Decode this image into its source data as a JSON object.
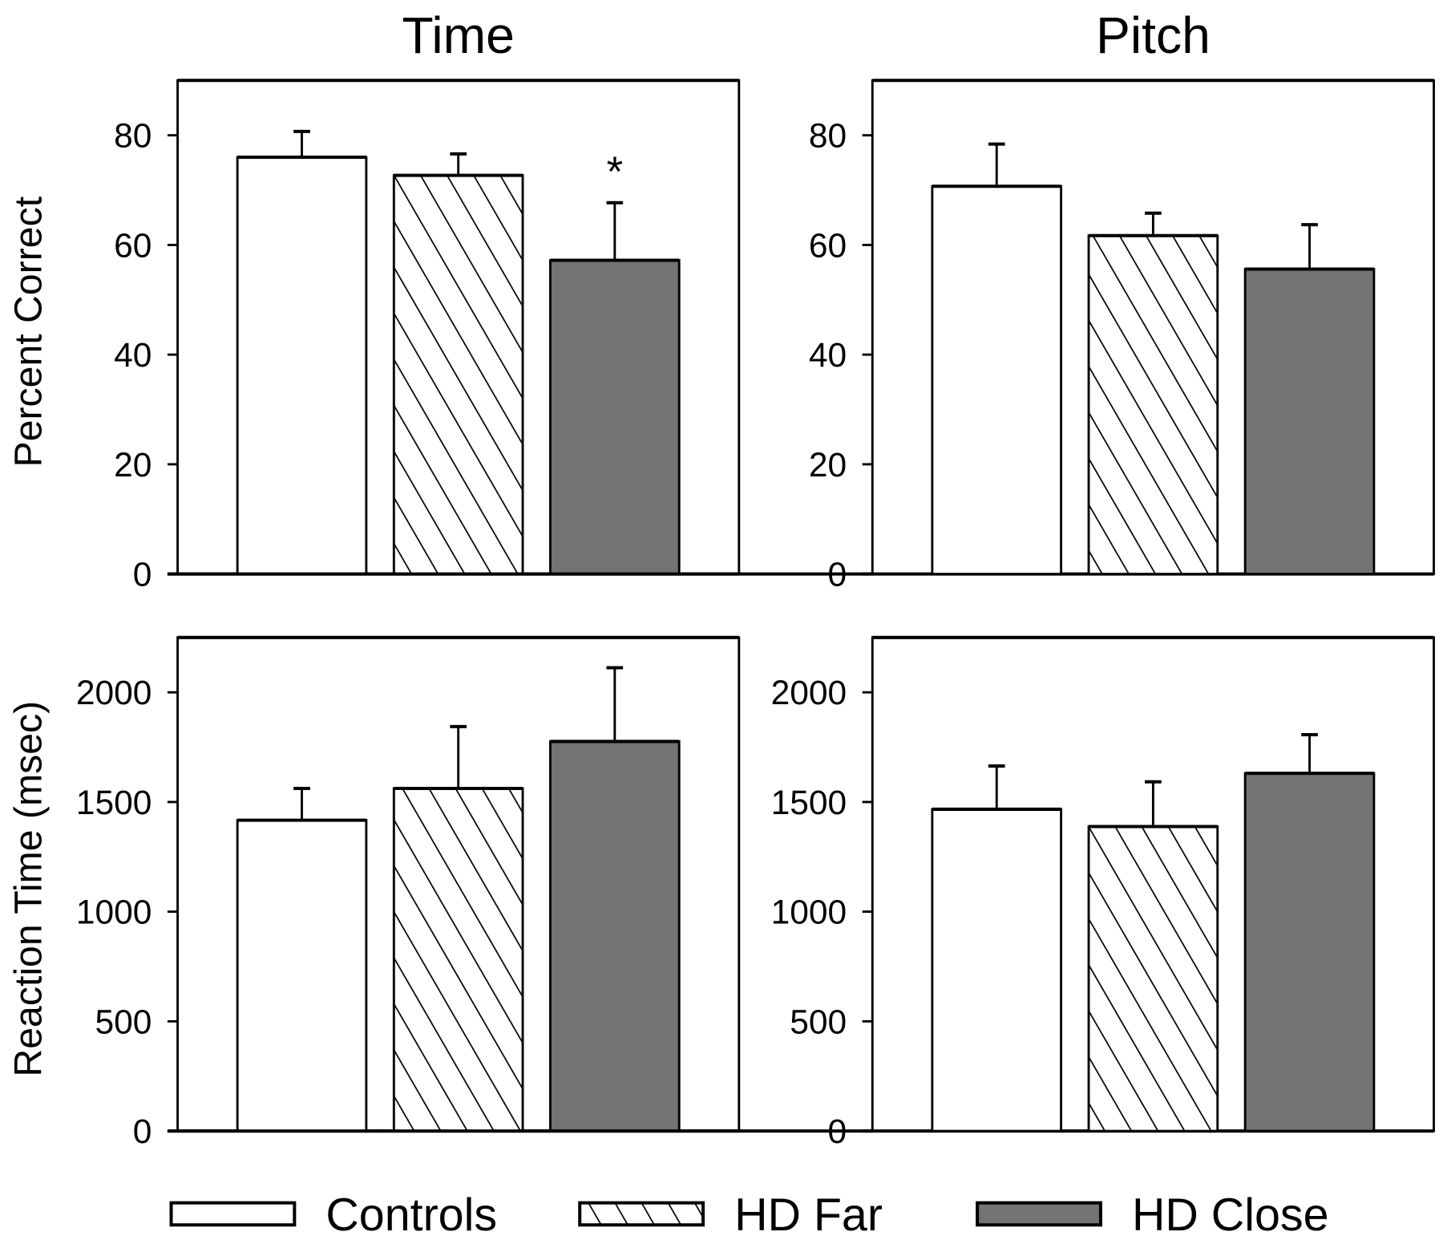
{
  "chart_data": {
    "type": "bar",
    "categories": [
      "Controls",
      "HD Far",
      "HD Close"
    ],
    "legend": {
      "placement": "bottom",
      "entries": [
        "Controls",
        "HD Far",
        "HD Close"
      ]
    },
    "colors": {
      "Controls": "#ffffff",
      "HD Far": "hatch",
      "HD Close": "#737373"
    },
    "panels": [
      {
        "title": "Time",
        "ylabel": "Percent Correct",
        "ylim": [
          0,
          90
        ],
        "yticks": [
          0,
          20,
          40,
          60,
          80
        ],
        "values": [
          76.0,
          72.7,
          57.2
        ],
        "errors": [
          4.7,
          3.9,
          10.5
        ],
        "annotations": [
          "",
          "",
          "*"
        ]
      },
      {
        "title": "Pitch",
        "ylabel": "",
        "ylim": [
          0,
          90
        ],
        "yticks": [
          0,
          20,
          40,
          60,
          80
        ],
        "values": [
          70.7,
          61.7,
          55.6
        ],
        "errors": [
          7.7,
          4.1,
          8.1
        ],
        "annotations": [
          "",
          "",
          ""
        ]
      },
      {
        "title": "",
        "ylabel": "Reaction Time (msec)",
        "ylim": [
          0,
          2250
        ],
        "yticks": [
          0,
          500,
          1000,
          1500,
          2000
        ],
        "values": [
          1417,
          1562,
          1776
        ],
        "errors": [
          145,
          282,
          336
        ],
        "annotations": [
          "",
          "",
          ""
        ]
      },
      {
        "title": "",
        "ylabel": "",
        "ylim": [
          0,
          2250
        ],
        "yticks": [
          0,
          500,
          1000,
          1500,
          2000
        ],
        "values": [
          1467,
          1388,
          1631
        ],
        "errors": [
          197,
          204,
          176
        ],
        "annotations": [
          "",
          "",
          ""
        ]
      }
    ]
  }
}
